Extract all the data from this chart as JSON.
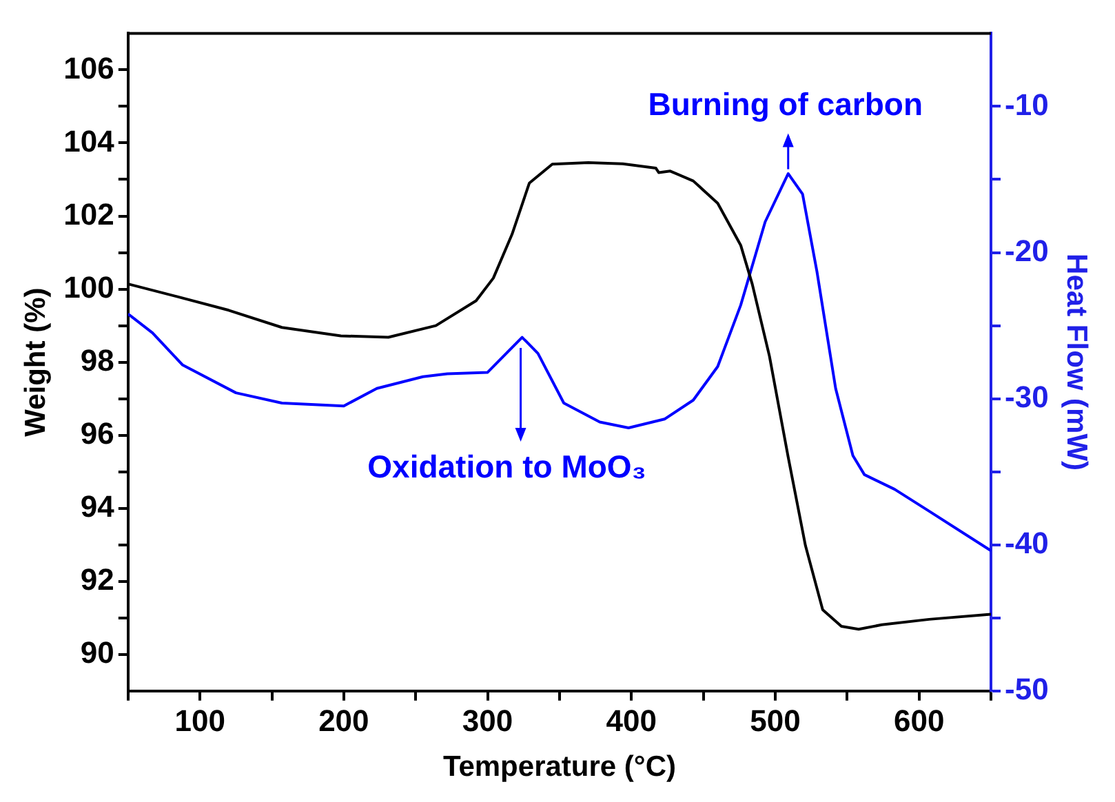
{
  "chart_data": {
    "type": "line",
    "xlabel": "Temperature (°C)",
    "ylabel": "Weight (%)",
    "y2label": "Heat Flow (mW)",
    "xlim": [
      50,
      650
    ],
    "xticks": [
      {
        "value": 50,
        "label": null
      },
      100,
      {
        "value": 150,
        "label": null
      },
      200,
      {
        "value": 250,
        "label": null
      },
      300,
      {
        "value": 350,
        "label": null
      },
      400,
      {
        "value": 450,
        "label": null
      },
      500,
      {
        "value": 550,
        "label": null
      },
      600,
      {
        "value": 650,
        "label": null
      }
    ],
    "ylim": [
      89,
      107
    ],
    "yticks": [
      90,
      {
        "value": 91,
        "label": null
      },
      92,
      {
        "value": 93,
        "label": null
      },
      94,
      {
        "value": 95,
        "label": null
      },
      96,
      {
        "value": 97,
        "label": null
      },
      98,
      {
        "value": 99,
        "label": null
      },
      100,
      {
        "value": 101,
        "label": null
      },
      102,
      {
        "value": 103,
        "label": null
      },
      104,
      {
        "value": 105,
        "label": null
      },
      106
    ],
    "y2lim": [
      -50,
      -5
    ],
    "y2ticks": [
      -50,
      {
        "value": -45,
        "label": null
      },
      -40,
      {
        "value": -35,
        "label": null
      },
      -30,
      {
        "value": -25,
        "label": null
      },
      -20,
      {
        "value": -15,
        "label": null
      },
      -10
    ],
    "grid": false,
    "legend": false,
    "marker": "none",
    "line_style": "solid",
    "series": [
      {
        "color": "#000000",
        "x": [
          50,
          83.5,
          120,
          157,
          198,
          231,
          264,
          292,
          304,
          317,
          329,
          345,
          370,
          394,
          417,
          419,
          427,
          443,
          460,
          476,
          484,
          496,
          509,
          521,
          533,
          546,
          558,
          574,
          607,
          650
        ],
        "values": [
          100.14,
          99.8,
          99.42,
          98.95,
          98.72,
          98.68,
          99.0,
          99.68,
          100.3,
          101.5,
          102.9,
          103.42,
          103.46,
          103.43,
          103.31,
          103.19,
          103.23,
          102.96,
          102.35,
          101.2,
          100.14,
          98.16,
          95.4,
          92.98,
          91.22,
          90.77,
          90.69,
          90.81,
          90.96,
          91.1
        ]
      },
      {
        "color": "#0000ff",
        "axis": "y2",
        "x": [
          50,
          67,
          88,
          125,
          157,
          200,
          223,
          255,
          272,
          300,
          313,
          324,
          335,
          353,
          378,
          398,
          423,
          443,
          460,
          476,
          493,
          509,
          519,
          529,
          542,
          554,
          562,
          583,
          607,
          650
        ],
        "values": [
          -24.2,
          -25.5,
          -27.7,
          -29.6,
          -30.3,
          -30.5,
          -29.3,
          -28.5,
          -28.3,
          -28.2,
          -26.9,
          -25.8,
          -26.9,
          -30.3,
          -31.6,
          -32.0,
          -31.4,
          -30.1,
          -27.8,
          -23.6,
          -17.9,
          -14.6,
          -16.0,
          -21.3,
          -29.3,
          -33.9,
          -35.2,
          -36.2,
          -37.7,
          -40.4
        ]
      }
    ],
    "annotations": [
      "Burning of carbon",
      "Oxidation to MoO₃"
    ]
  }
}
